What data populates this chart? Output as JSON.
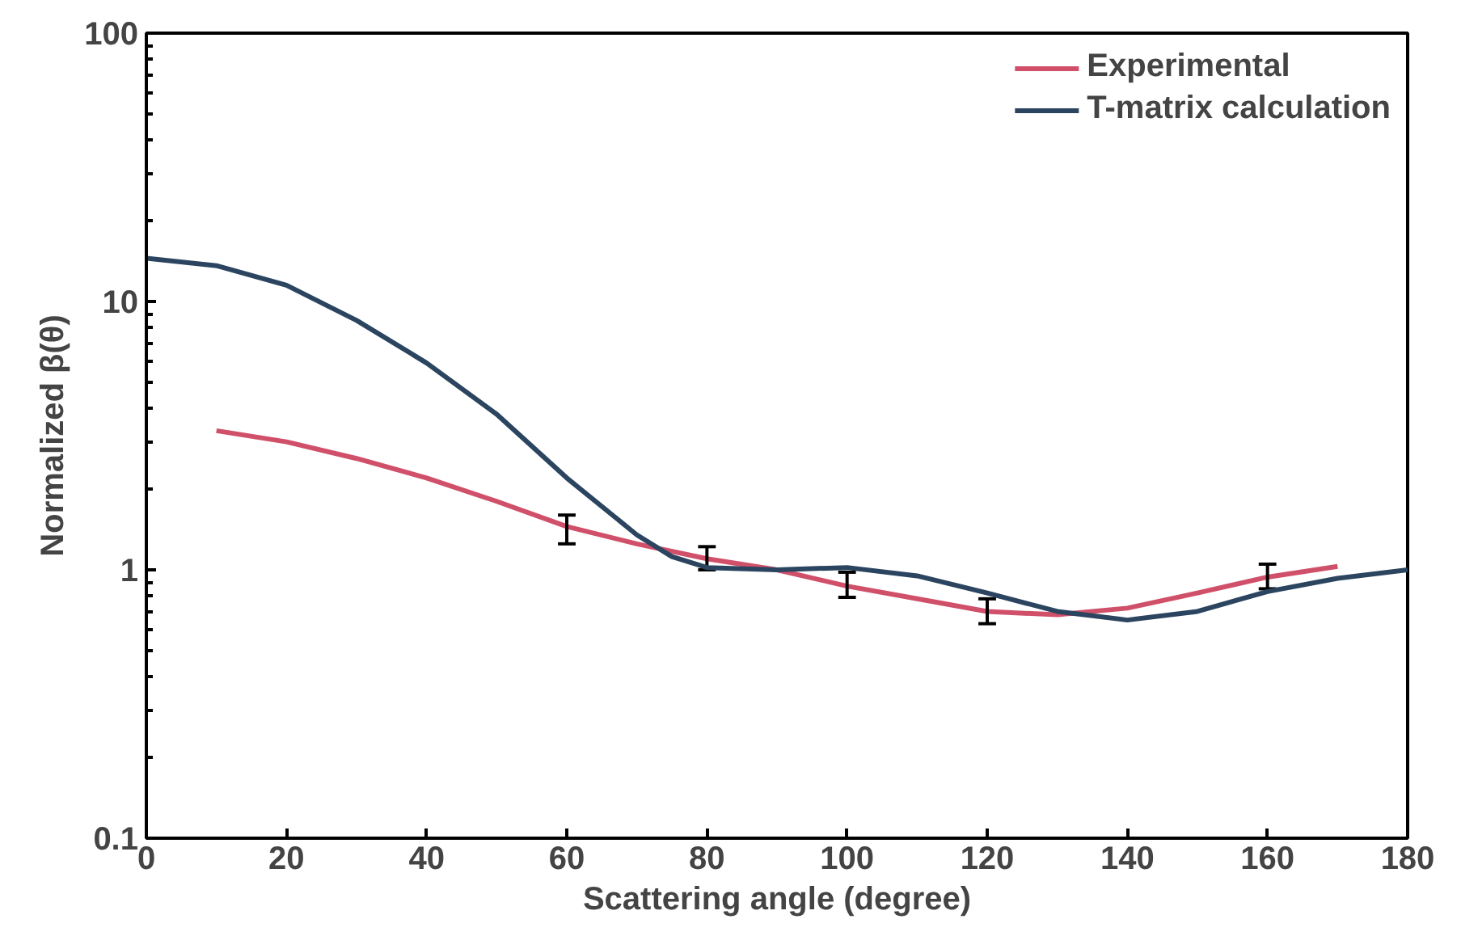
{
  "chart_data": {
    "type": "line",
    "xlabel": "Scattering angle (degree)",
    "ylabel": "Normalized β(θ)",
    "log": "y",
    "xlim": [
      0,
      180
    ],
    "ylim": [
      0.1,
      100
    ],
    "xticks": [
      0,
      20,
      40,
      60,
      80,
      100,
      120,
      140,
      160,
      180
    ],
    "yticks": [
      {
        "value": 0.1,
        "label": "0.1"
      },
      1,
      10,
      100
    ],
    "grid": false,
    "legend": "top right",
    "marker": "none",
    "line_style": "solid",
    "series": [
      {
        "name": "Experimental",
        "color": "#d0506a",
        "x": [
          10,
          20,
          30,
          40,
          50,
          60,
          70,
          80,
          90,
          100,
          110,
          120,
          130,
          140,
          150,
          160,
          170
        ],
        "values": [
          3.3,
          3.0,
          2.6,
          2.2,
          1.8,
          1.45,
          1.25,
          1.1,
          1.0,
          0.87,
          0.78,
          0.7,
          0.68,
          0.72,
          0.82,
          0.94,
          1.03
        ],
        "errors": [
          null,
          null,
          null,
          null,
          null,
          [
            1.25,
            1.6
          ],
          null,
          [
            1.0,
            1.22
          ],
          null,
          [
            0.79,
            0.98
          ],
          null,
          [
            0.63,
            0.78
          ],
          null,
          null,
          null,
          [
            0.85,
            1.05
          ],
          null
        ]
      },
      {
        "name": "T-matrix calculation",
        "color": "#2b4560",
        "x": [
          0,
          10,
          20,
          30,
          40,
          50,
          60,
          70,
          75,
          80,
          90,
          100,
          110,
          120,
          130,
          140,
          150,
          160,
          170,
          180
        ],
        "values": [
          14.5,
          13.6,
          11.5,
          8.5,
          5.9,
          3.8,
          2.2,
          1.35,
          1.12,
          1.02,
          1.0,
          1.02,
          0.95,
          0.82,
          0.7,
          0.65,
          0.7,
          0.83,
          0.93,
          1.0
        ]
      }
    ]
  }
}
